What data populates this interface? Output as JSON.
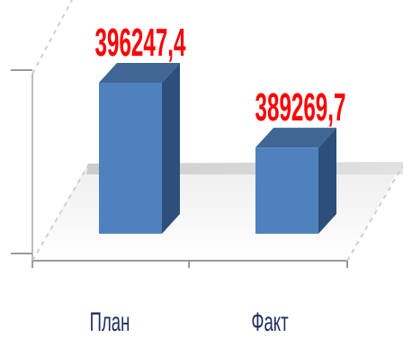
{
  "chart_data": {
    "type": "bar",
    "categories": [
      "План",
      "Факт"
    ],
    "values": [
      396247.4,
      389269.7
    ],
    "value_labels": [
      "396247,4",
      "389269,7"
    ],
    "title": "",
    "xlabel": "",
    "ylabel": "",
    "ylim": [
      380000,
      400000
    ],
    "grid": false,
    "legend": "none",
    "colors": {
      "bar_front": "#4f81bd",
      "bar_side": "#2e4f7a",
      "bar_top": "#3f6695",
      "data_label": "#ff0000",
      "category_label": "#1f2d5a"
    }
  }
}
